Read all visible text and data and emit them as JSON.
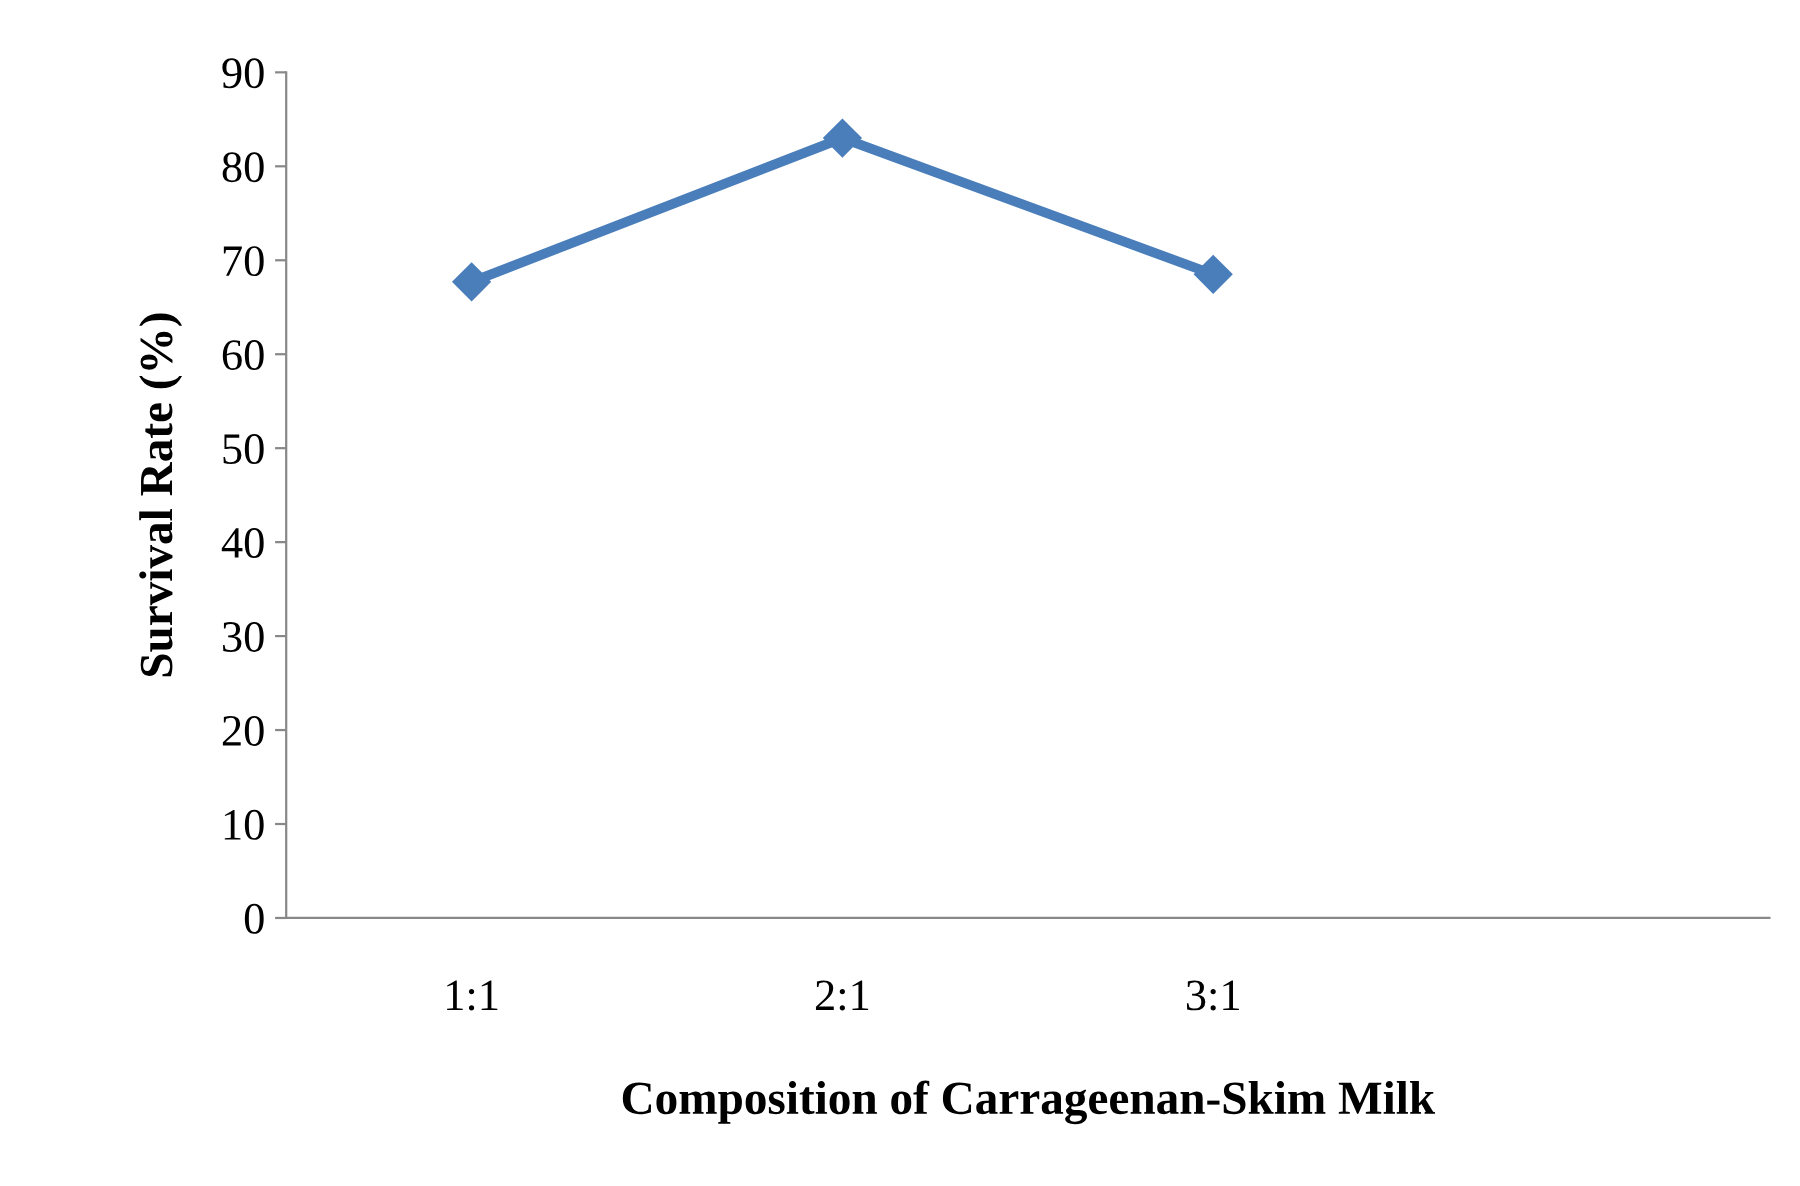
{
  "chart_data": {
    "type": "line",
    "xlabel": "Composition of Carrageenan-Skim Milk",
    "ylabel": "Survival Rate (%)",
    "categories": [
      "1:1",
      "2:1",
      "3:1",
      null
    ],
    "series": [
      {
        "color": "#4a7ebb",
        "values": [
          67.7,
          83.0,
          68.5,
          null
        ]
      }
    ],
    "ylim": [
      0,
      90
    ],
    "yticks": [
      0,
      10,
      20,
      30,
      40,
      50,
      60,
      70,
      80,
      90
    ],
    "marker": "diamond",
    "line_style": "solid",
    "grid": false,
    "legend": false
  }
}
